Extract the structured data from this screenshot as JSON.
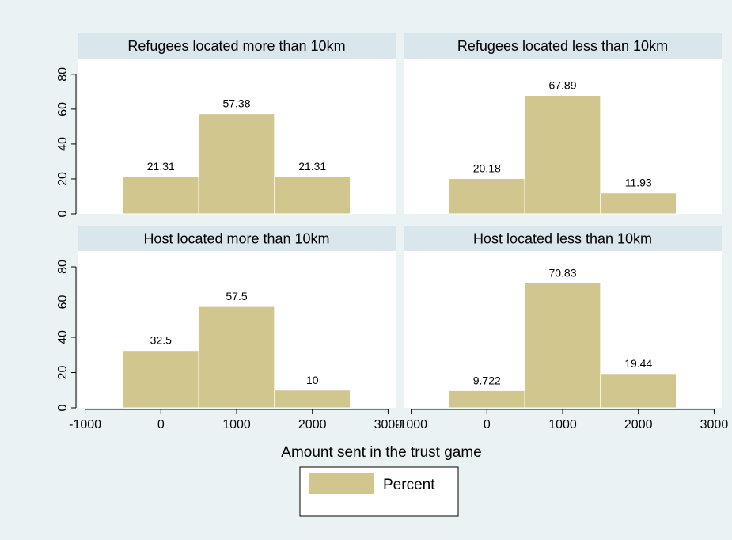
{
  "colors": {
    "outer_background": "#eaf2f3",
    "plot_background": "#ffffff",
    "strip_background": "#d9e6eb",
    "bar_fill": "#d2c68f",
    "bar_stroke": "#ffffff",
    "axis": "#000000"
  },
  "chart_data": {
    "type": "bar",
    "layout": "2x2 facets",
    "xlabel": "Amount sent in the trust game",
    "ylabel": "",
    "xlim": [
      -1100,
      3100
    ],
    "ylim": [
      0,
      89
    ],
    "x_ticks": [
      -1000,
      0,
      1000,
      2000,
      3000
    ],
    "x_tick_labels": [
      "-1000",
      "0",
      "1000",
      "2000",
      "3000"
    ],
    "y_ticks": [
      0,
      20,
      40,
      60,
      80
    ],
    "y_tick_labels": [
      "0",
      "20",
      "40",
      "60",
      "80"
    ],
    "bin_width": 1000,
    "grid": false,
    "legend": {
      "position": "bottom-center",
      "entries": [
        "Percent"
      ]
    },
    "panels": [
      {
        "title": "Refugees located  more than 10km",
        "x": [
          0,
          1000,
          2000
        ],
        "values": [
          21.31,
          57.38,
          21.31
        ],
        "value_labels": [
          "21.31",
          "57.38",
          "21.31"
        ]
      },
      {
        "title": "Refugees located less than 10km",
        "x": [
          0,
          1000,
          2000
        ],
        "values": [
          20.18,
          67.89,
          11.93
        ],
        "value_labels": [
          "20.18",
          "67.89",
          "11.93"
        ]
      },
      {
        "title": "Host located  more than 10km",
        "x": [
          0,
          1000,
          2000
        ],
        "values": [
          32.5,
          57.5,
          10
        ],
        "value_labels": [
          "32.5",
          "57.5",
          "10"
        ]
      },
      {
        "title": "Host located  less than 10km",
        "x": [
          0,
          1000,
          2000
        ],
        "values": [
          9.722,
          70.83,
          19.44
        ],
        "value_labels": [
          "9.722",
          "70.83",
          "19.44"
        ]
      }
    ]
  }
}
